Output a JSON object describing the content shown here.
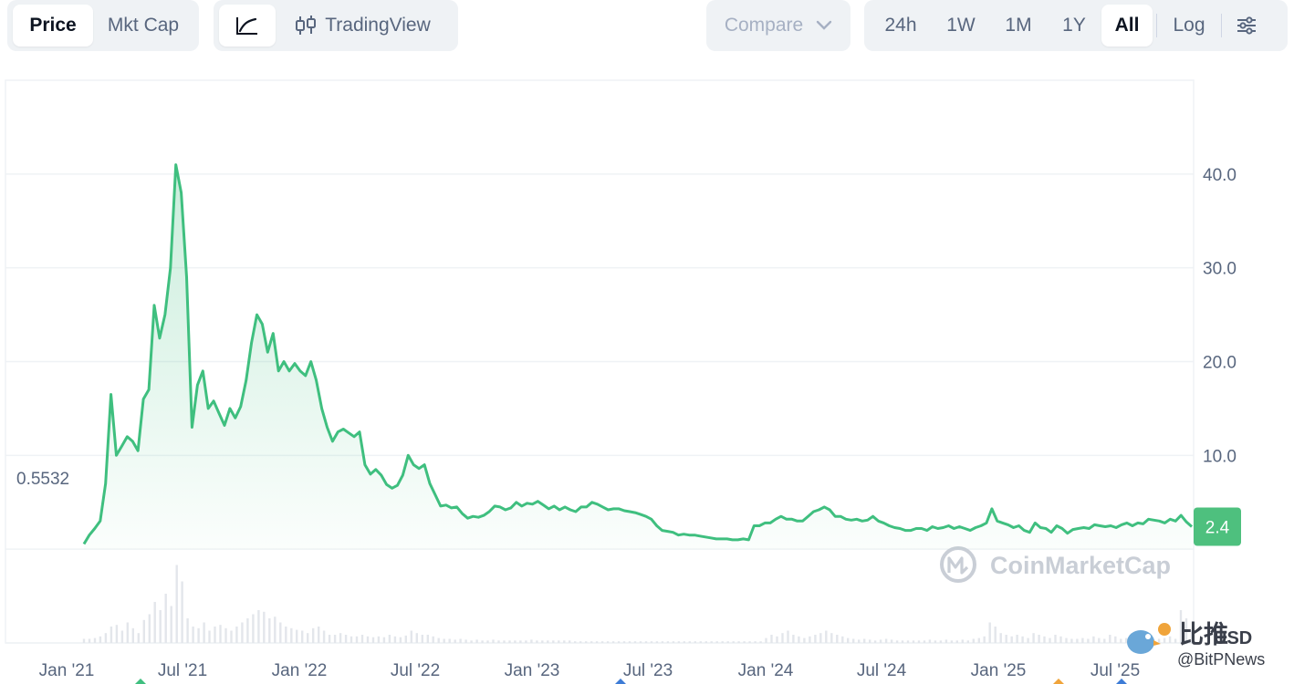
{
  "toolbar": {
    "metric_tabs": [
      {
        "label": "Price",
        "active": true
      },
      {
        "label": "Mkt Cap",
        "active": false
      }
    ],
    "chart_type": {
      "line_icon": "line-chart-icon",
      "candle_icon": "candlestick-icon",
      "tradingview_label": "TradingView"
    },
    "compare": {
      "label": "Compare",
      "icon": "chevron-down-icon"
    },
    "ranges": [
      {
        "label": "24h",
        "active": false
      },
      {
        "label": "1W",
        "active": false
      },
      {
        "label": "1M",
        "active": false
      },
      {
        "label": "1Y",
        "active": false
      },
      {
        "label": "All",
        "active": true
      }
    ],
    "log_label": "Log",
    "settings_icon": "sliders-icon"
  },
  "colors": {
    "line": "#3fbf7f",
    "badge": "#4ec07e",
    "grid": "#eff2f5",
    "text": "#58667e"
  },
  "watermark": "CoinMarketCap",
  "corner_overlay": {
    "cn_text": "比推",
    "usd_text": "USD",
    "handle_text": "@BitPNews"
  },
  "chart_data": {
    "type": "area",
    "title": "",
    "xlabel": "",
    "ylabel": "",
    "currency": "USD",
    "x_ticks": [
      "Jan '21",
      "Jul '21",
      "Jan '22",
      "Jul '22",
      "Jan '23",
      "Jul '23",
      "Jan '24",
      "Jul '24",
      "Jan '25",
      "Jul '25"
    ],
    "y_ticks": [
      "10.0",
      "20.0",
      "30.0",
      "40.0"
    ],
    "y_tick_values": [
      10,
      20,
      30,
      40
    ],
    "ylim": [
      -10,
      50
    ],
    "start_label": "0.5532",
    "start_value": 0.5532,
    "current_label": "2.4",
    "current_value": 2.4,
    "grid": true,
    "series": [
      {
        "values": [
          0.55,
          1.5,
          2.2,
          3,
          7,
          16.5,
          10,
          11,
          12,
          11.5,
          10.5,
          16,
          17,
          26,
          22.5,
          25,
          30,
          41,
          38,
          29,
          13,
          17.5,
          19,
          15,
          15.8,
          14.5,
          13.2,
          15,
          14,
          15.2,
          18,
          22,
          25,
          24,
          21,
          23,
          19,
          20,
          19,
          19.8,
          19,
          18.5,
          20,
          18,
          15,
          13,
          11.5,
          12.5,
          12.8,
          12.4,
          12,
          12.5,
          9,
          8,
          8.5,
          7.9,
          6.9,
          6.5,
          6.8,
          7.9,
          10,
          9,
          8.6,
          9,
          7,
          5.8,
          4.6,
          4.7,
          4.4,
          4.5,
          3.8,
          3.3,
          3.5,
          3.4,
          3.6,
          4,
          4.6,
          4.5,
          4.2,
          4.4,
          5,
          4.6,
          4.9,
          4.8,
          5.1,
          4.7,
          4.3,
          4.6,
          4.2,
          4.5,
          4.2,
          4,
          4.5,
          4.5,
          5,
          4.8,
          4.5,
          4.2,
          4.3,
          4.3,
          4.1,
          4,
          3.9,
          3.7,
          3.5,
          3.2,
          2.5,
          2,
          1.9,
          1.8,
          1.5,
          1.6,
          1.5,
          1.5,
          1.4,
          1.3,
          1.2,
          1.1,
          1.1,
          1.1,
          1,
          1,
          1.1,
          1,
          2.5,
          2.5,
          2.8,
          2.8,
          3.2,
          3.5,
          3.2,
          3.2,
          3,
          3,
          3.5,
          4,
          4.2,
          4.5,
          4.2,
          3.5,
          3.5,
          3.2,
          3.1,
          3.2,
          3,
          3.1,
          3.5,
          3,
          2.8,
          2.5,
          2.3,
          2.2,
          2,
          2,
          2.2,
          2.2,
          2,
          2.4,
          2.2,
          2.3,
          2.5,
          2.2,
          2.4,
          2.2,
          2,
          2.3,
          2.5,
          2.8,
          4.3,
          3,
          2.8,
          2.6,
          2.3,
          2.5,
          2,
          1.8,
          2.8,
          2.3,
          2.2,
          1.8,
          2.5,
          2.2,
          1.7,
          2.1,
          2.2,
          2.3,
          2.2,
          2.6,
          2.5,
          2.4,
          2.5,
          2.3,
          2.6,
          2.8,
          2.5,
          2.8,
          2.7,
          3.2,
          3.1,
          3,
          2.8,
          3.2,
          3,
          3.6,
          2.9,
          2.4
        ]
      }
    ],
    "volume": [
      0.05,
      0.05,
      0.06,
      0.08,
      0.12,
      0.2,
      0.22,
      0.15,
      0.25,
      0.18,
      0.12,
      0.28,
      0.35,
      0.5,
      0.4,
      0.6,
      0.45,
      0.95,
      0.75,
      0.3,
      0.2,
      0.18,
      0.25,
      0.15,
      0.2,
      0.22,
      0.18,
      0.15,
      0.2,
      0.25,
      0.3,
      0.35,
      0.4,
      0.38,
      0.3,
      0.32,
      0.25,
      0.2,
      0.18,
      0.16,
      0.15,
      0.12,
      0.18,
      0.2,
      0.15,
      0.1,
      0.1,
      0.12,
      0.1,
      0.08,
      0.08,
      0.1,
      0.08,
      0.07,
      0.08,
      0.07,
      0.1,
      0.08,
      0.07,
      0.09,
      0.15,
      0.12,
      0.1,
      0.1,
      0.08,
      0.06,
      0.05,
      0.05,
      0.04,
      0.05,
      0.04,
      0.03,
      0.04,
      0.03,
      0.03,
      0.04,
      0.03,
      0.03,
      0.03,
      0.03,
      0.03,
      0.03,
      0.04,
      0.03,
      0.03,
      0.03,
      0.03,
      0.03,
      0.03,
      0.03,
      0.02,
      0.02,
      0.02,
      0.02,
      0.02,
      0.02,
      0.02,
      0.02,
      0.02,
      0.02,
      0.02,
      0.02,
      0.02,
      0.02,
      0.02,
      0.02,
      0.02,
      0.02,
      0.02,
      0.02,
      0.02,
      0.02,
      0.02,
      0.02,
      0.02,
      0.02,
      0.02,
      0.02,
      0.02,
      0.02,
      0.02,
      0.02,
      0.02,
      0.02,
      0.02,
      0.06,
      0.1,
      0.08,
      0.12,
      0.15,
      0.1,
      0.08,
      0.06,
      0.08,
      0.1,
      0.12,
      0.15,
      0.12,
      0.1,
      0.08,
      0.06,
      0.05,
      0.04,
      0.05,
      0.04,
      0.03,
      0.04,
      0.05,
      0.04,
      0.03,
      0.03,
      0.03,
      0.03,
      0.03,
      0.03,
      0.04,
      0.03,
      0.03,
      0.04,
      0.03,
      0.03,
      0.04,
      0.03,
      0.05,
      0.06,
      0.08,
      0.25,
      0.2,
      0.12,
      0.1,
      0.08,
      0.1,
      0.08,
      0.06,
      0.12,
      0.1,
      0.08,
      0.06,
      0.1,
      0.08,
      0.06,
      0.05,
      0.05,
      0.06,
      0.05,
      0.08,
      0.06,
      0.05,
      0.1,
      0.08,
      0.05,
      0.06,
      0.05,
      0.06,
      0.05,
      0.06,
      0.05,
      0.05,
      0.06,
      0.08,
      0.05,
      0.4,
      0.3,
      0.15
    ]
  }
}
